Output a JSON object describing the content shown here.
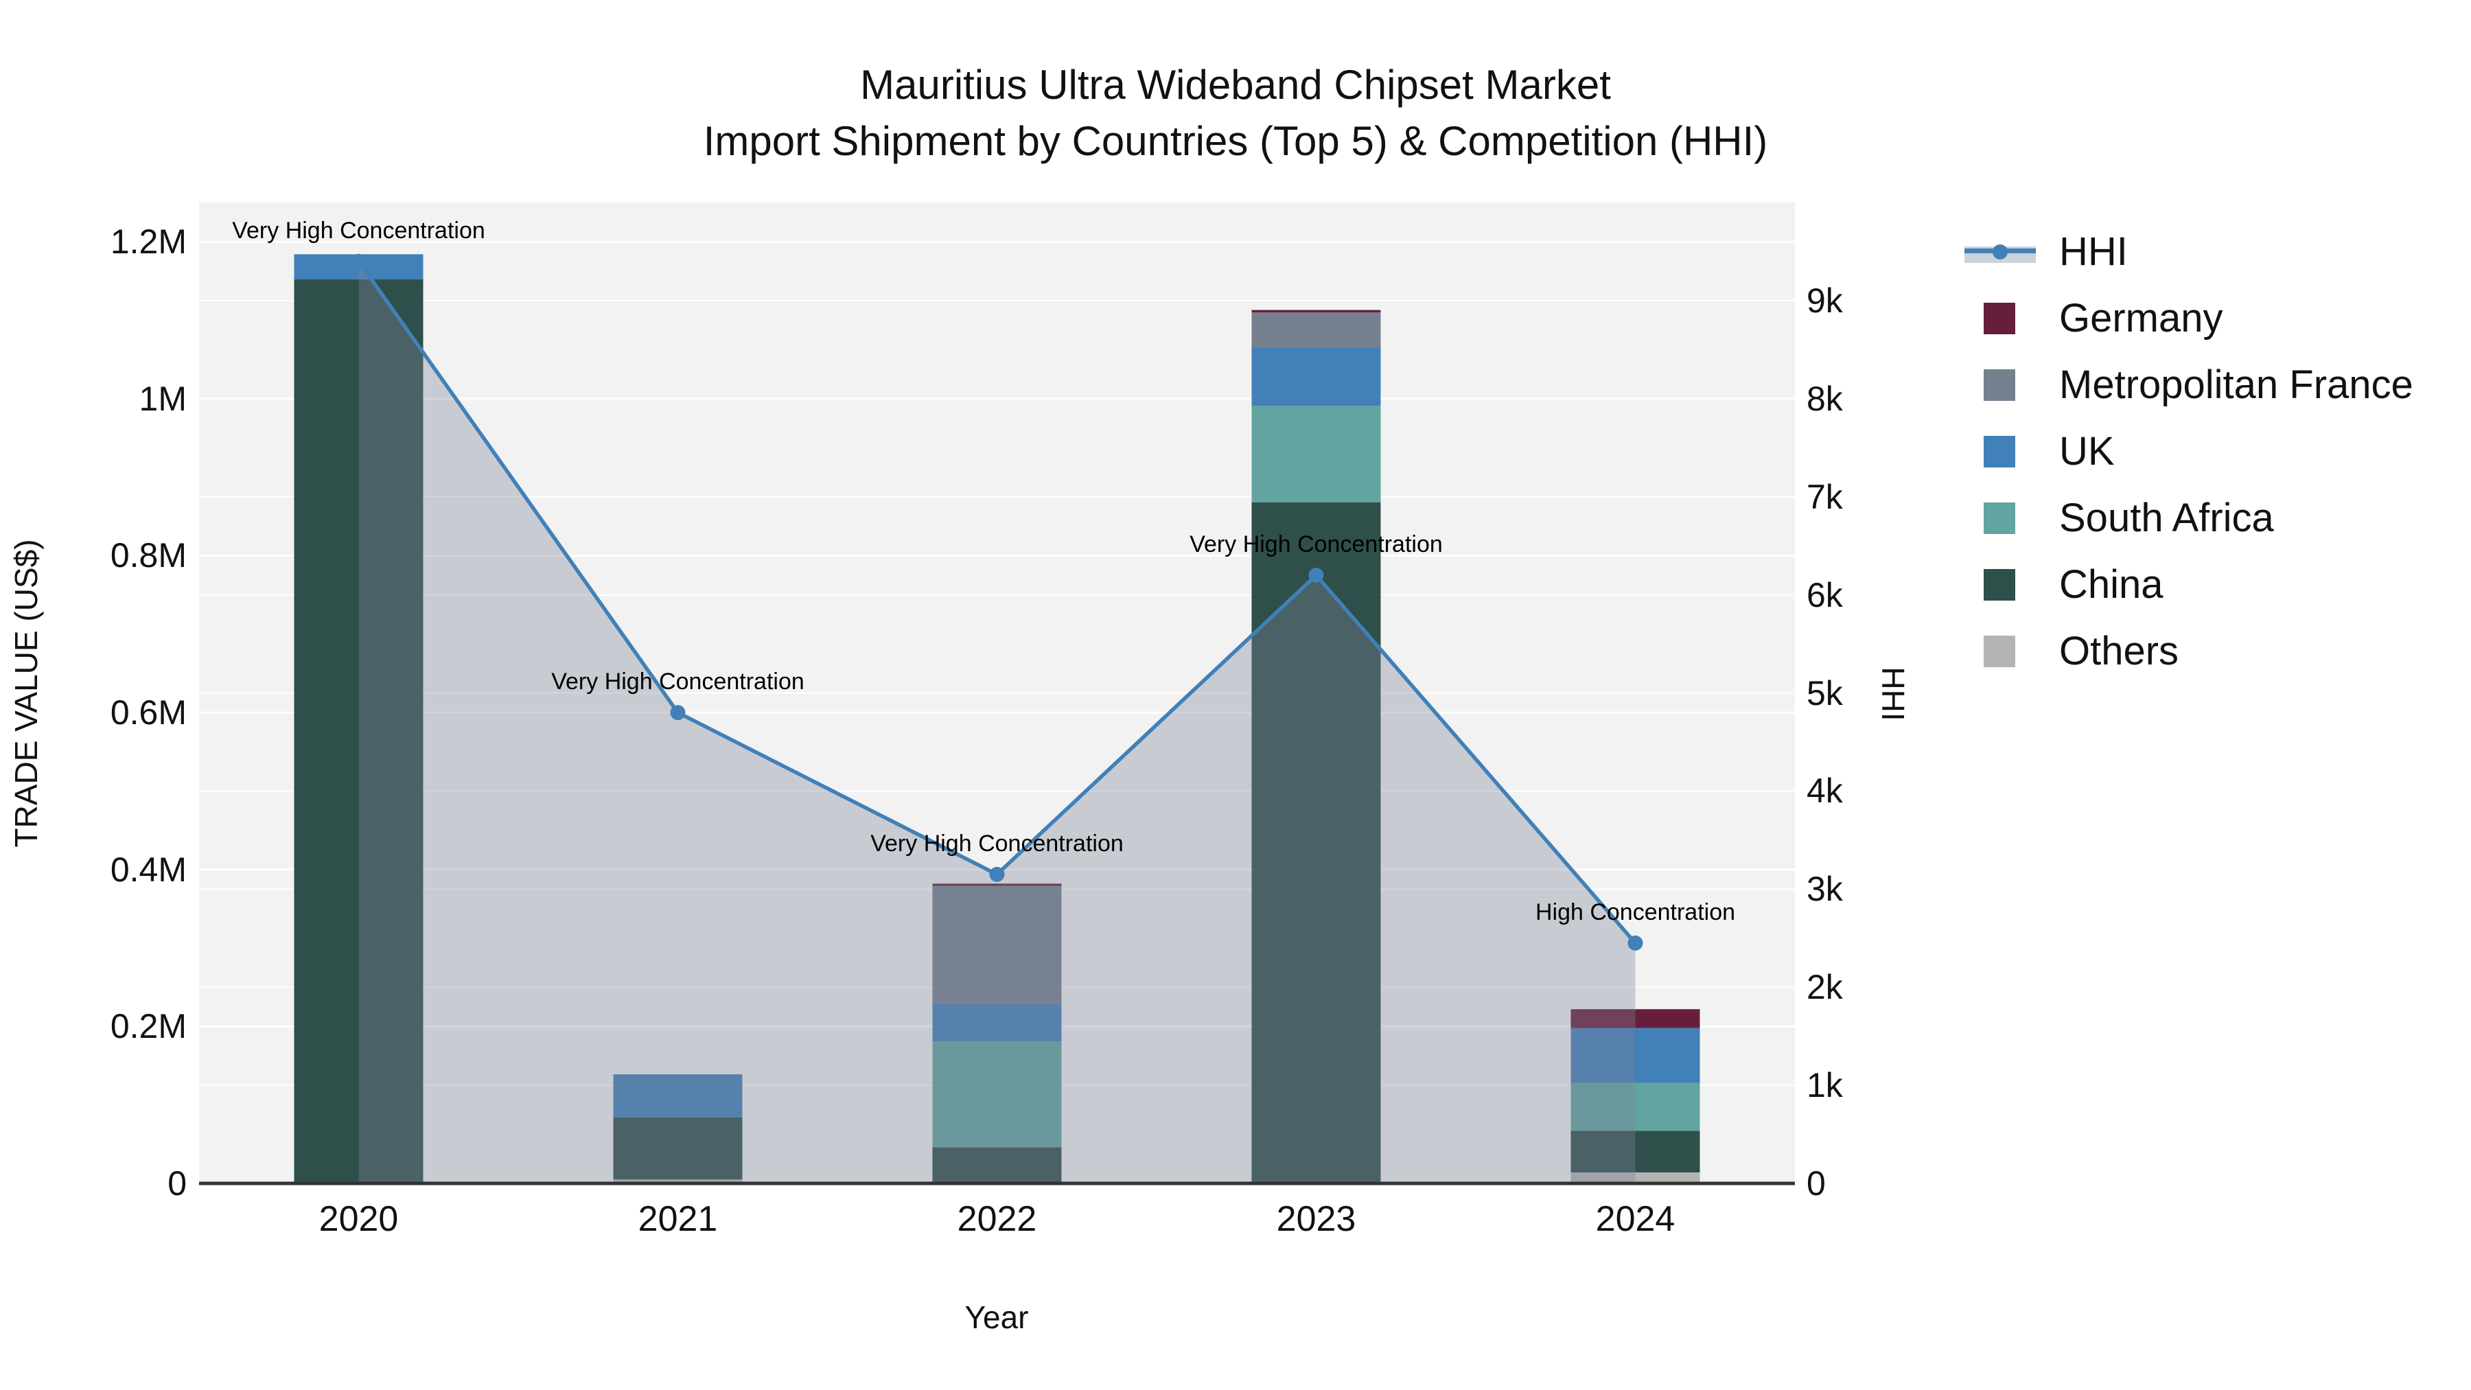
{
  "title": {
    "line1": "Mauritius Ultra Wideband Chipset Market",
    "line2": "Import Shipment by Countries (Top 5) & Competition (HHI)"
  },
  "chart_data": {
    "type": "bar+line",
    "categories": [
      "2020",
      "2021",
      "2022",
      "2023",
      "2024"
    ],
    "bar_stack_order_bottom_to_top": [
      "Others",
      "China",
      "South Africa",
      "UK",
      "Metropolitan France",
      "Germany"
    ],
    "series": [
      {
        "name": "Others",
        "color": "#b3b5b3",
        "values": [
          0,
          5000,
          0,
          0,
          14000
        ]
      },
      {
        "name": "China",
        "color": "#2e4f4a",
        "values": [
          1152000,
          79000,
          46000,
          868000,
          53000
        ]
      },
      {
        "name": "South Africa",
        "color": "#62a4a0",
        "values": [
          0,
          0,
          135000,
          123000,
          61000
        ]
      },
      {
        "name": "UK",
        "color": "#4180b8",
        "values": [
          32000,
          55000,
          48000,
          74000,
          70000
        ]
      },
      {
        "name": "Metropolitan France",
        "color": "#75808f",
        "values": [
          0,
          0,
          150000,
          45000,
          0
        ]
      },
      {
        "name": "Germany",
        "color": "#671e3d",
        "values": [
          0,
          0,
          3000,
          3000,
          24000
        ]
      }
    ],
    "hhi": {
      "name": "HHI",
      "line_color": "#4180b8",
      "fill_color": "rgba(125,133,153,0.35)",
      "values": [
        9400,
        4800,
        3150,
        6200,
        2450
      ]
    },
    "annotations": [
      {
        "category": "2020",
        "text": "Very High Concentration"
      },
      {
        "category": "2021",
        "text": "Very High Concentration"
      },
      {
        "category": "2022",
        "text": "Very High Concentration"
      },
      {
        "category": "2023",
        "text": "Very High Concentration"
      },
      {
        "category": "2024",
        "text": "High Concentration"
      }
    ],
    "left_axis": {
      "title": "TRADE VALUE (US$)",
      "range": [
        0,
        1250000
      ],
      "ticks": [
        {
          "value": 0,
          "label": "0"
        },
        {
          "value": 200000,
          "label": "0.2M"
        },
        {
          "value": 400000,
          "label": "0.4M"
        },
        {
          "value": 600000,
          "label": "0.6M"
        },
        {
          "value": 800000,
          "label": "0.8M"
        },
        {
          "value": 1000000,
          "label": "1M"
        },
        {
          "value": 1200000,
          "label": "1.2M"
        }
      ]
    },
    "right_axis": {
      "title": "HHI",
      "range": [
        0,
        10000
      ],
      "ticks": [
        {
          "value": 0,
          "label": "0"
        },
        {
          "value": 1000,
          "label": "1k"
        },
        {
          "value": 2000,
          "label": "2k"
        },
        {
          "value": 3000,
          "label": "3k"
        },
        {
          "value": 4000,
          "label": "4k"
        },
        {
          "value": 5000,
          "label": "5k"
        },
        {
          "value": 6000,
          "label": "6k"
        },
        {
          "value": 7000,
          "label": "7k"
        },
        {
          "value": 8000,
          "label": "8k"
        },
        {
          "value": 9000,
          "label": "9k"
        }
      ]
    },
    "x_axis": {
      "title": "Year"
    },
    "layout_hints": {
      "plot_bg": "#f2f2f2",
      "grid_color": "#ffffff",
      "axis_line_color": "#333333",
      "legend_position": "right",
      "grid_on": true
    }
  },
  "legend": {
    "items": [
      {
        "label": "HHI",
        "type": "line",
        "color": "#4180b8"
      },
      {
        "label": "Germany",
        "type": "swatch",
        "color": "#671e3d"
      },
      {
        "label": "Metropolitan France",
        "type": "swatch",
        "color": "#75808f"
      },
      {
        "label": "UK",
        "type": "swatch",
        "color": "#4180b8"
      },
      {
        "label": "South Africa",
        "type": "swatch",
        "color": "#62a4a0"
      },
      {
        "label": "China",
        "type": "swatch",
        "color": "#2e4f4a"
      },
      {
        "label": "Others",
        "type": "swatch",
        "color": "#b3b5b3"
      }
    ]
  }
}
